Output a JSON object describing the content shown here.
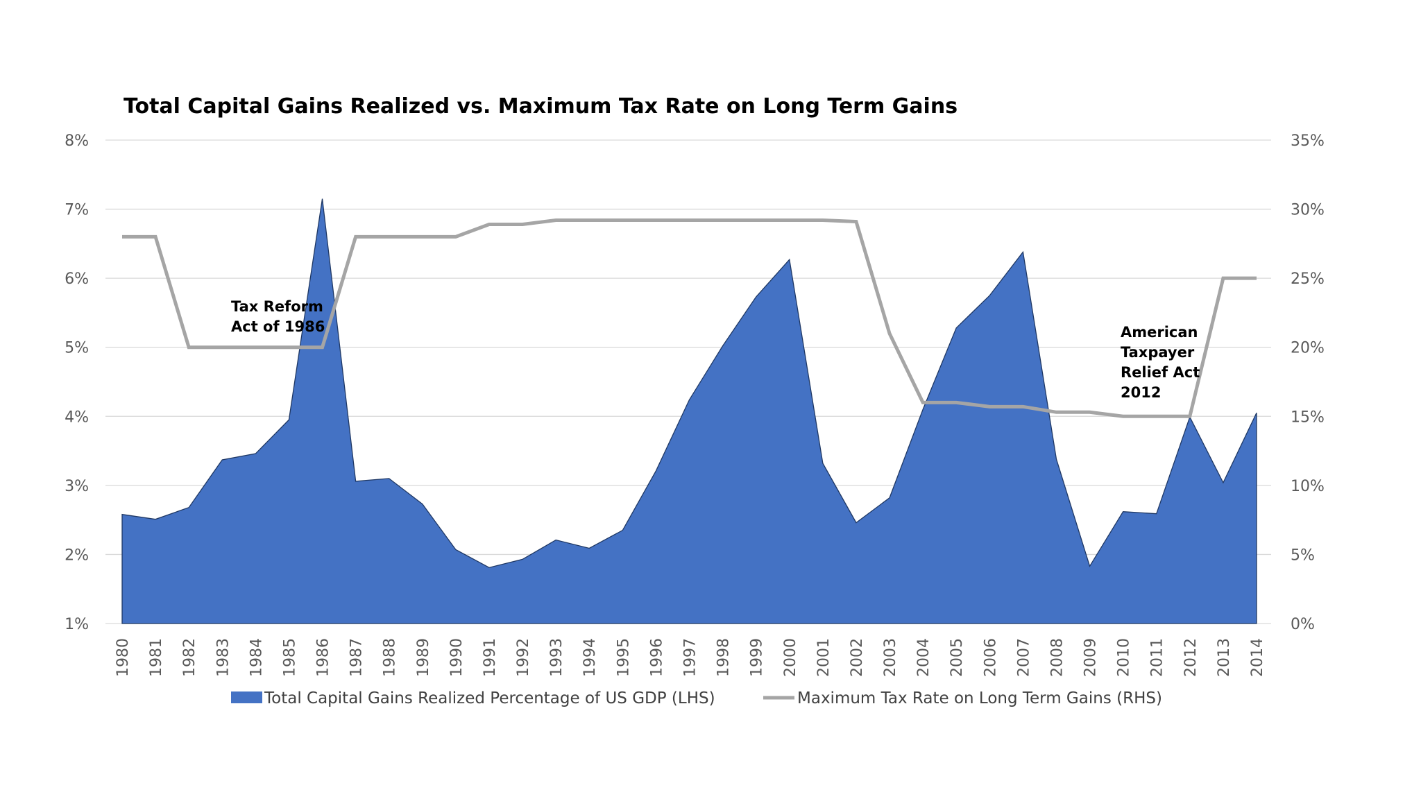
{
  "chart_data": {
    "type": "area",
    "title": "Total Capital Gains Realized vs. Maximum Tax Rate on Long Term Gains",
    "x": [
      "1980",
      "1981",
      "1982",
      "1983",
      "1984",
      "1985",
      "1986",
      "1987",
      "1988",
      "1989",
      "1990",
      "1991",
      "1992",
      "1993",
      "1994",
      "1995",
      "1996",
      "1997",
      "1998",
      "1999",
      "2000",
      "2001",
      "2002",
      "2003",
      "2004",
      "2005",
      "2006",
      "2007",
      "2008",
      "2009",
      "2010",
      "2011",
      "2012",
      "2013",
      "2014"
    ],
    "y_left": {
      "ylim": [
        1,
        8
      ],
      "ticks": [
        "1%",
        "2%",
        "3%",
        "4%",
        "5%",
        "6%",
        "7%",
        "8%"
      ]
    },
    "y_right": {
      "ylim": [
        0,
        35
      ],
      "ticks": [
        "0%",
        "5%",
        "10%",
        "15%",
        "20%",
        "25%",
        "30%",
        "35%"
      ]
    },
    "grid": true,
    "legend_position": "bottom",
    "series": [
      {
        "name": "Total Capital Gains Realized Percentage of US GDP (LHS)",
        "type": "area",
        "axis": "left",
        "color": "#4472c4",
        "values": [
          2.58,
          2.51,
          2.68,
          3.37,
          3.46,
          3.95,
          7.15,
          3.06,
          3.1,
          2.73,
          2.07,
          1.81,
          1.93,
          2.21,
          2.09,
          2.35,
          3.21,
          4.24,
          5.02,
          5.73,
          6.27,
          3.32,
          2.46,
          2.82,
          4.1,
          5.28,
          5.75,
          6.38,
          3.38,
          1.83,
          2.62,
          2.59,
          3.99,
          3.04,
          4.05
        ]
      },
      {
        "name": "Maximum Tax Rate on Long Term Gains (RHS)",
        "type": "line",
        "axis": "right",
        "color": "#a5a5a5",
        "values": [
          28,
          28,
          20,
          20,
          20,
          20,
          20,
          28,
          28,
          28,
          28,
          28.9,
          28.9,
          29.2,
          29.2,
          29.2,
          29.2,
          29.2,
          29.2,
          29.2,
          29.2,
          29.2,
          29.1,
          21,
          16,
          16,
          15.7,
          15.7,
          15.3,
          15.3,
          15,
          15,
          15,
          25,
          25
        ]
      }
    ],
    "annotations": [
      {
        "lines": [
          "Tax Reform",
          "Act of 1986"
        ],
        "year": "1986"
      },
      {
        "lines": [
          "American",
          "Taxpayer",
          "Relief Act",
          "2012"
        ],
        "year": "2012"
      }
    ]
  }
}
